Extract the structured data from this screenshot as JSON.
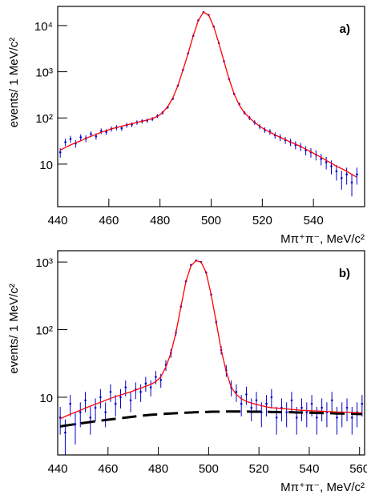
{
  "chart_data": [
    {
      "type": "scatter",
      "label": "a)",
      "xlabel": "Mπ⁺π⁻, MeV/c²",
      "ylabel": "events/ 1 MeV/c²",
      "ylog": true,
      "xlim": [
        440,
        560
      ],
      "xticks": [
        440,
        460,
        480,
        500,
        520,
        540
      ],
      "ylim": [
        1.2,
        26000
      ],
      "yticks": [
        10,
        {
          "value": 100,
          "label": "10²"
        },
        {
          "value": 1000,
          "label": "10³"
        },
        {
          "value": 10000,
          "label": "10⁴"
        }
      ],
      "point_color": "#0000cc",
      "fit_color": "#ff0000",
      "x": [
        441,
        443,
        445,
        447,
        449,
        451,
        453,
        455,
        457,
        459,
        461,
        463,
        465,
        467,
        469,
        471,
        473,
        475,
        477,
        479,
        481,
        483,
        485,
        487,
        489,
        491,
        493,
        495,
        497,
        499,
        501,
        503,
        505,
        507,
        509,
        511,
        513,
        515,
        517,
        519,
        521,
        523,
        525,
        527,
        529,
        531,
        533,
        535,
        537,
        539,
        541,
        543,
        545,
        547,
        549,
        551,
        553,
        555,
        557
      ],
      "values": [
        18,
        30,
        35,
        28,
        38,
        36,
        45,
        40,
        52,
        50,
        58,
        62,
        60,
        70,
        72,
        80,
        85,
        88,
        95,
        110,
        130,
        170,
        260,
        500,
        1100,
        2500,
        6000,
        13000,
        19500,
        17000,
        9500,
        4200,
        1700,
        700,
        330,
        200,
        130,
        100,
        80,
        65,
        55,
        50,
        42,
        38,
        33,
        30,
        26,
        24,
        20,
        18,
        16,
        13,
        11,
        9,
        7,
        5,
        6,
        4,
        6
      ],
      "errors": [
        4.2,
        5.5,
        5.9,
        5.3,
        6.2,
        6,
        6.7,
        6.3,
        7.2,
        7.1,
        7.6,
        7.9,
        7.7,
        8.4,
        8.5,
        8.9,
        9.2,
        9.4,
        9.7,
        10.5,
        11.4,
        13,
        16,
        22,
        33,
        50,
        77,
        114,
        140,
        130,
        97,
        65,
        41,
        26,
        18,
        14,
        11.4,
        10,
        8.9,
        8.1,
        7.4,
        7.1,
        6.5,
        6.2,
        5.7,
        5.5,
        5.1,
        4.9,
        4.5,
        4.2,
        4,
        3.6,
        3.3,
        3,
        2.6,
        2.2,
        2.4,
        2,
        2.4
      ],
      "fit": [
        20,
        23,
        26,
        29,
        32,
        36,
        40,
        44,
        49,
        53,
        58,
        62,
        66,
        71,
        75,
        80,
        85,
        90,
        97,
        108,
        130,
        175,
        270,
        500,
        1100,
        2500,
        6000,
        13000,
        19500,
        17000,
        9500,
        4200,
        1700,
        700,
        330,
        190,
        130,
        100,
        80,
        66,
        56,
        49,
        43,
        38,
        34,
        30,
        27,
        24,
        21,
        18.5,
        16,
        14,
        12,
        10.5,
        9,
        8,
        7,
        6,
        5.2
      ]
    },
    {
      "type": "scatter",
      "label": "b)",
      "xlabel": "Mπ⁺π⁻, MeV/c²",
      "ylabel": "events/ 1 MeV/c²",
      "ylog": true,
      "xlim": [
        440,
        562
      ],
      "xticks": [
        440,
        460,
        480,
        500,
        520,
        540,
        560
      ],
      "ylim": [
        1.4,
        1470
      ],
      "yticks": [
        10,
        {
          "value": 100,
          "label": "10²"
        },
        {
          "value": 1000,
          "label": "10³"
        }
      ],
      "point_color": "#0000cc",
      "fit_color": "#ff0000",
      "background_color": "#000000",
      "x": [
        441,
        443,
        445,
        447,
        449,
        451,
        453,
        455,
        457,
        459,
        461,
        463,
        465,
        467,
        469,
        471,
        473,
        475,
        477,
        479,
        481,
        483,
        485,
        487,
        489,
        491,
        493,
        495,
        497,
        499,
        501,
        503,
        505,
        507,
        509,
        511,
        513,
        515,
        517,
        519,
        521,
        523,
        525,
        527,
        529,
        531,
        533,
        535,
        537,
        539,
        541,
        543,
        545,
        547,
        549,
        551,
        553,
        555,
        557,
        559,
        561
      ],
      "values": [
        5,
        3,
        8,
        4,
        6,
        9,
        5,
        7,
        10,
        6,
        12,
        8,
        10,
        14,
        9,
        13,
        12,
        16,
        14,
        20,
        18,
        30,
        45,
        90,
        220,
        520,
        900,
        1050,
        1000,
        700,
        330,
        130,
        50,
        25,
        14,
        12,
        8,
        11,
        7,
        9,
        6,
        8,
        10,
        5,
        7,
        6,
        9,
        5,
        7,
        6,
        8,
        5,
        7,
        6,
        9,
        5,
        6,
        7,
        5,
        6,
        8
      ],
      "errors": [
        2.2,
        1.7,
        2.8,
        2,
        2.4,
        3,
        2.2,
        2.6,
        3.2,
        2.4,
        3.5,
        2.8,
        3.2,
        3.7,
        3,
        3.6,
        3.5,
        4,
        3.7,
        4.5,
        4.2,
        5.5,
        6.7,
        9.5,
        14.8,
        22.8,
        30,
        32.4,
        31.6,
        26.5,
        18.2,
        11.4,
        7.1,
        5,
        3.7,
        3.5,
        2.8,
        3.3,
        2.6,
        3,
        2.4,
        2.8,
        3.2,
        2.2,
        2.6,
        2.4,
        3,
        2.2,
        2.6,
        2.4,
        2.8,
        2.2,
        2.6,
        2.4,
        3,
        2.2,
        2.4,
        2.6,
        2.2,
        2.4,
        2.8
      ],
      "fit": [
        4.8,
        5.2,
        5.6,
        6,
        6.4,
        6.9,
        7.4,
        7.9,
        8.4,
        9,
        9.6,
        10.2,
        10.8,
        11.4,
        12,
        12.8,
        13.6,
        14.5,
        15.5,
        17,
        20,
        28,
        45,
        90,
        220,
        520,
        880,
        1050,
        1000,
        700,
        330,
        130,
        50,
        24,
        14,
        11,
        9.5,
        8.7,
        8.2,
        7.8,
        7.5,
        7.2,
        7,
        6.9,
        6.8,
        6.7,
        6.6,
        6.5,
        6.4,
        6.35,
        6.3,
        6.25,
        6.2,
        6.15,
        6.1,
        6.05,
        6,
        6,
        5.95,
        5.9,
        5.9
      ],
      "background": [
        3.7,
        3.8,
        3.9,
        4,
        4.1,
        4.2,
        4.3,
        4.4,
        4.5,
        4.6,
        4.7,
        4.8,
        4.9,
        5,
        5.1,
        5.2,
        5.3,
        5.4,
        5.5,
        5.55,
        5.6,
        5.7,
        5.75,
        5.8,
        5.85,
        5.9,
        5.95,
        6,
        6,
        6.05,
        6.1,
        6.1,
        6.1,
        6.15,
        6.15,
        6.15,
        6.15,
        6.15,
        6.1,
        6.1,
        6.1,
        6.1,
        6.05,
        6.05,
        6,
        6,
        6,
        5.95,
        5.95,
        5.9,
        5.9,
        5.85,
        5.85,
        5.8,
        5.8,
        5.75,
        5.75,
        5.7,
        5.7,
        5.65,
        5.65
      ]
    }
  ]
}
